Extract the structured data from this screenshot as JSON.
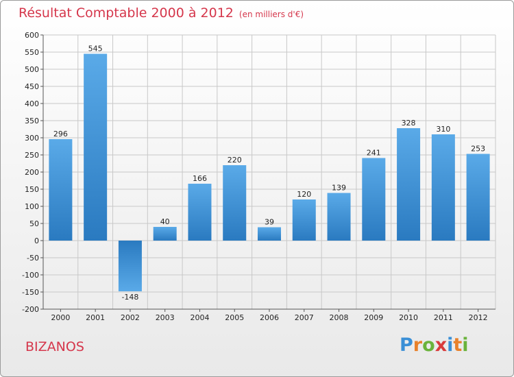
{
  "header": {
    "title": "Résultat Comptable 2000 à 2012",
    "subtitle": "(en milliers d'€)"
  },
  "footer": {
    "city": "BIZANOS",
    "logo_letters": [
      "P",
      "r",
      "o",
      "x",
      "i",
      "t",
      "i"
    ],
    "logo_colors": [
      "#3a8fd6",
      "#e8812b",
      "#6ab33b",
      "#d93b3b",
      "#3a8fd6",
      "#e8812b",
      "#6ab33b"
    ]
  },
  "colors": {
    "bar_top": "#5aaae8",
    "bar_bottom": "#2a7ac0",
    "grid": "#c8c8c8",
    "title": "#d5364b"
  },
  "chart_data": {
    "type": "bar",
    "title": "Résultat Comptable 2000 à 2012",
    "subtitle": "(en milliers d'€)",
    "categories": [
      "2000",
      "2001",
      "2002",
      "2003",
      "2004",
      "2005",
      "2006",
      "2007",
      "2008",
      "2009",
      "2010",
      "2011",
      "2012"
    ],
    "values": [
      296,
      545,
      -148,
      40,
      166,
      220,
      39,
      120,
      139,
      241,
      328,
      310,
      253
    ],
    "value_labels": [
      "296",
      "545",
      "-148",
      "40",
      "166",
      "220",
      "39",
      "120",
      "139",
      "241",
      "328",
      "310",
      "253"
    ],
    "yticks": [
      600,
      550,
      500,
      450,
      400,
      350,
      300,
      250,
      200,
      150,
      100,
      50,
      0,
      -50,
      -100,
      -150,
      -200
    ],
    "ylim": [
      -200,
      600
    ],
    "xlabel": "",
    "ylabel": "",
    "grid": true
  }
}
